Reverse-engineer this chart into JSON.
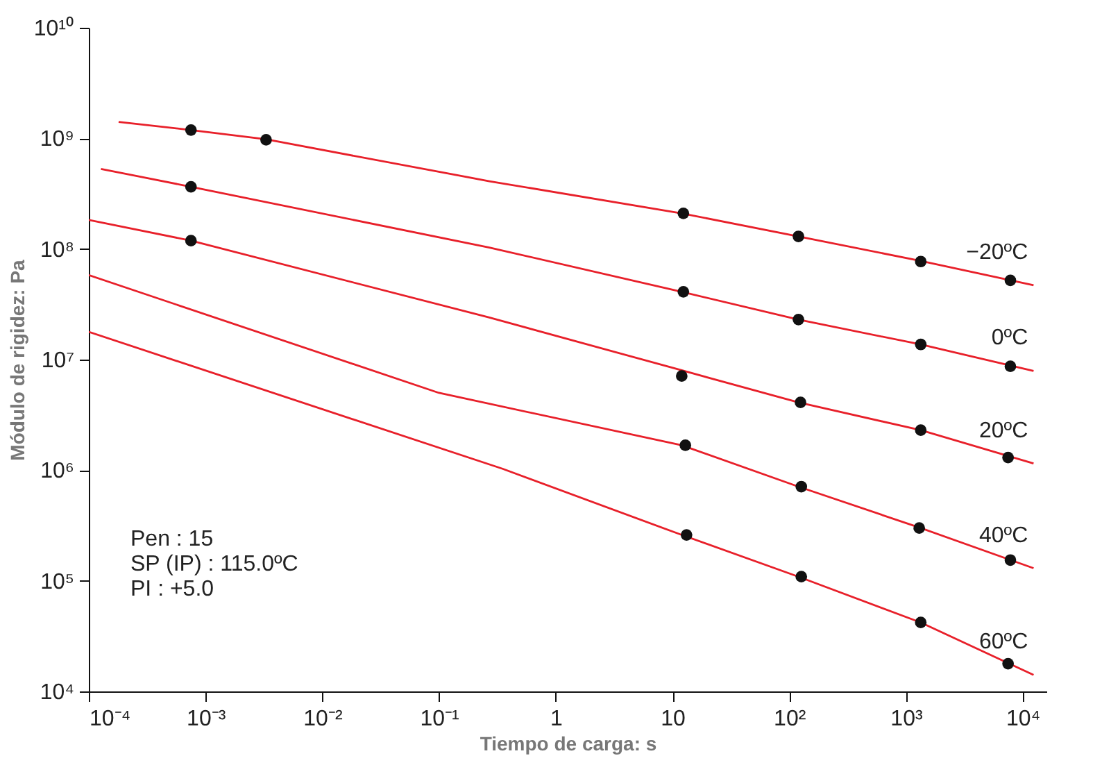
{
  "chart_data": {
    "type": "line",
    "xlabel": "Tiempo de carga: s",
    "ylabel": "Módulo de rigidez: Pa",
    "log": "xy",
    "grid": false,
    "legend": false,
    "xlim": [
      0.0001,
      16000
    ],
    "ylim": [
      10000,
      10000000000
    ],
    "xticks": [
      {
        "value": 0.0001,
        "label": "10⁻⁴"
      },
      {
        "value": 0.001,
        "label": "10⁻³"
      },
      {
        "value": 0.01,
        "label": "10⁻²"
      },
      {
        "value": 0.1,
        "label": "10⁻¹"
      },
      1,
      10,
      {
        "value": 100,
        "label": "10²"
      },
      {
        "value": 1000,
        "label": "10³"
      },
      {
        "value": 10000,
        "label": "10⁴"
      }
    ],
    "yticks": [
      {
        "value": 10000,
        "label": "10⁴"
      },
      {
        "value": 100000,
        "label": "10⁵"
      },
      {
        "value": 1000000,
        "label": "10⁶"
      },
      {
        "value": 10000000,
        "label": "10⁷"
      },
      {
        "value": 100000000,
        "label": "10⁸"
      },
      {
        "value": 1000000000,
        "label": "10⁹"
      },
      {
        "value": 10000000000,
        "label": "10¹⁰"
      }
    ],
    "series": [
      {
        "name": "−20ºC",
        "type": "line",
        "color": "#e8202a",
        "marker": "none",
        "line_style": "solid",
        "x": [
          0.00018,
          0.00075,
          0.0033,
          0.27,
          12,
          120,
          1340,
          12400
        ],
        "values": [
          1410000000,
          1190000000,
          980000000,
          410000000,
          210000000,
          130000000,
          78000000,
          47000000
        ]
      },
      {
        "name": "0ºC",
        "type": "line",
        "color": "#e8202a",
        "marker": "none",
        "line_style": "solid",
        "x": [
          0.000127,
          0.00075,
          0.27,
          12,
          120,
          1340,
          12400
        ],
        "values": [
          530000000,
          365000000,
          103000000,
          41000000,
          23000000,
          13700000,
          7900000
        ]
      },
      {
        "name": "20ºC",
        "type": "line",
        "color": "#e8202a",
        "marker": "none",
        "line_style": "solid",
        "x": [
          0.0001,
          0.00075,
          0.27,
          12,
          120,
          1340,
          12400
        ],
        "values": [
          183000000,
          119000000,
          24000000,
          8000000,
          4100000,
          2300000,
          1150000
        ]
      },
      {
        "name": "40ºC",
        "type": "line",
        "color": "#e8202a",
        "marker": "none",
        "line_style": "solid",
        "x": [
          0.0001,
          0.1,
          12,
          120,
          1340,
          12400
        ],
        "values": [
          58000000,
          5000000,
          1680000,
          710000,
          300000,
          130000
        ]
      },
      {
        "name": "60ºC",
        "type": "line",
        "color": "#e8202a",
        "marker": "none",
        "line_style": "solid",
        "x": [
          0.0001,
          0.35,
          12,
          120,
          1340,
          12400
        ],
        "values": [
          17800000,
          1030000,
          260000,
          109000,
          42000,
          14100
        ]
      },
      {
        "type": "scatter",
        "color": "#111111",
        "marker": "circle",
        "x": [
          0.00075,
          0.0033,
          12.4,
          120,
          1340,
          7850
        ],
        "values": [
          1190000000,
          970000000,
          210000000,
          130000000,
          77000000,
          52000000
        ]
      },
      {
        "type": "scatter",
        "color": "#111111",
        "marker": "circle",
        "x": [
          0.00075,
          12.4,
          120,
          1340,
          7850
        ],
        "values": [
          365000000,
          41000000,
          23000000,
          13700000,
          8700000
        ]
      },
      {
        "type": "scatter",
        "color": "#111111",
        "marker": "circle",
        "x": [
          0.00075,
          12,
          125,
          1340,
          7500
        ],
        "values": [
          119000000,
          7100000,
          4100000,
          2300000,
          1300000
        ]
      },
      {
        "type": "scatter",
        "color": "#111111",
        "marker": "circle",
        "x": [
          12.9,
          127,
          1300,
          7850
        ],
        "values": [
          1680000,
          710000,
          300000,
          154000
        ]
      },
      {
        "type": "scatter",
        "color": "#111111",
        "marker": "circle",
        "x": [
          13.2,
          127,
          1340,
          7500
        ],
        "values": [
          260000,
          109000,
          42000,
          17800
        ]
      }
    ],
    "annotations": [
      "Pen : 15",
      "SP (IP) : 115.0ºC",
      "PI : +5.0"
    ]
  }
}
